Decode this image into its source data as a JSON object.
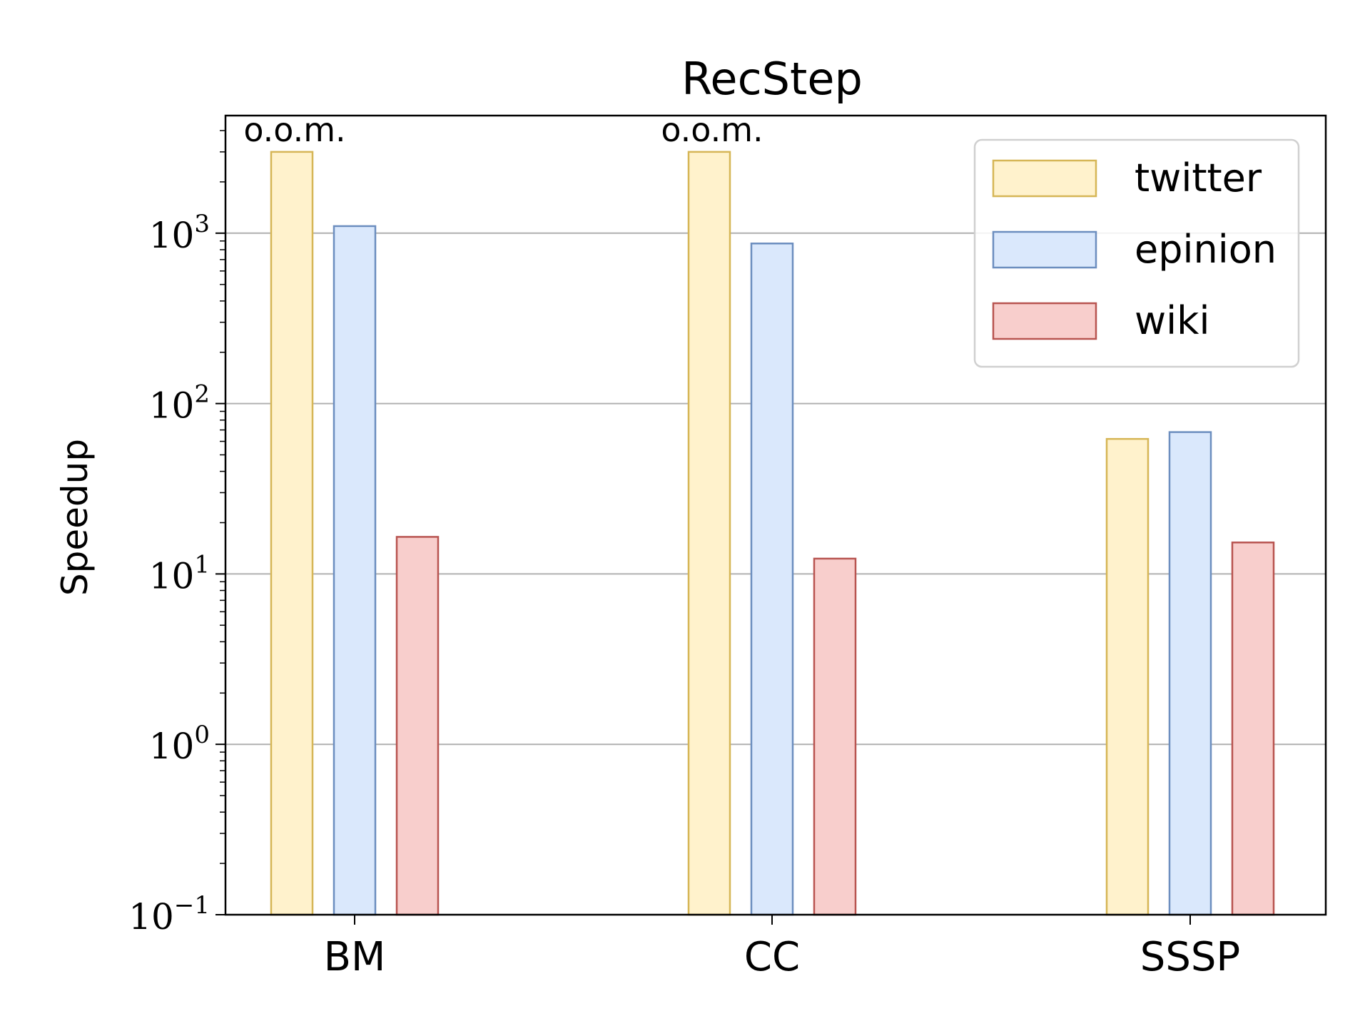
{
  "chart_data": {
    "type": "bar",
    "title": "RecStep",
    "xlabel": "",
    "ylabel": "Speedup",
    "yscale": "log",
    "ylim": [
      0.1,
      5000
    ],
    "grid": "y-major",
    "legend_position": "top-right",
    "categories": [
      "BM",
      "CC",
      "SSSP"
    ],
    "yticks": [
      {
        "value": 0.1,
        "base": "10",
        "exp": "−1"
      },
      {
        "value": 1,
        "base": "10",
        "exp": "0"
      },
      {
        "value": 10,
        "base": "10",
        "exp": "1"
      },
      {
        "value": 100,
        "base": "10",
        "exp": "2"
      },
      {
        "value": 1000,
        "base": "10",
        "exp": "3"
      }
    ],
    "series": [
      {
        "name": "twitter",
        "values": [
          3000,
          3000,
          62
        ],
        "fill": "#fff2cc",
        "stroke": "#d6b656"
      },
      {
        "name": "epinion",
        "values": [
          1100,
          870,
          68
        ],
        "fill": "#dae8fc",
        "stroke": "#6c8ebf"
      },
      {
        "name": "wiki",
        "values": [
          16.5,
          12.3,
          15.3
        ],
        "fill": "#f8cecc",
        "stroke": "#b85450"
      }
    ],
    "annotations": [
      {
        "text": "o.o.m.",
        "category": "BM",
        "series": "twitter"
      },
      {
        "text": "o.o.m.",
        "category": "CC",
        "series": "twitter"
      }
    ]
  }
}
